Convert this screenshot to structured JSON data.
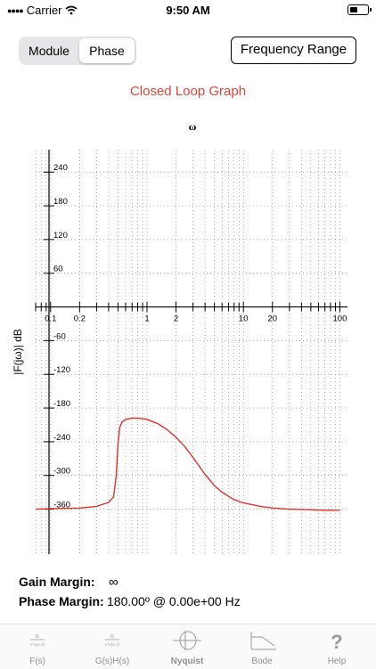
{
  "status_bar": {
    "carrier": "Carrier",
    "time": "9:50 AM"
  },
  "segmented": {
    "items": [
      "Module",
      "Phase"
    ],
    "selected": "Phase"
  },
  "freq_range_label": "Frequency Range",
  "graph_title": "Closed Loop Graph",
  "chart_data": {
    "type": "line",
    "title": "ω",
    "ylabel": "|F(jω)| dB",
    "x_scale": "log",
    "xlim": [
      0.07,
      120
    ],
    "ylim": [
      -440,
      280
    ],
    "x_tick_labels": [
      "0.1",
      "0.2",
      "1",
      "2",
      "10",
      "20",
      "100"
    ],
    "x_ticks": [
      0.1,
      0.2,
      1,
      2,
      10,
      20,
      100
    ],
    "y_ticks": [
      240,
      180,
      120,
      60,
      -60,
      -120,
      -180,
      -240,
      -300,
      -360
    ],
    "y_tick_labels": [
      "240",
      "180",
      "120",
      "60",
      "-60",
      "-120",
      "-180",
      "-240",
      "-300",
      "-360"
    ],
    "grid": true,
    "series": [
      {
        "color": "#e0302a",
        "x": [
          0.07,
          0.1,
          0.2,
          0.3,
          0.4,
          0.45,
          0.48,
          0.5,
          0.52,
          0.55,
          0.6,
          0.7,
          0.8,
          1.0,
          1.3,
          1.6,
          2.0,
          2.5,
          3.0,
          4.0,
          5.0,
          6.0,
          8.0,
          10,
          15,
          20,
          30,
          50,
          70,
          100
        ],
        "y": [
          -360,
          -359,
          -358,
          -355,
          -348,
          -338,
          -300,
          -245,
          -215,
          -205,
          -200,
          -198,
          -198,
          -200,
          -208,
          -218,
          -232,
          -250,
          -268,
          -298,
          -318,
          -330,
          -343,
          -349,
          -355,
          -358,
          -360,
          -361,
          -362,
          -362
        ]
      }
    ]
  },
  "margins": {
    "gain_label": "Gain Margin:",
    "gain_value": "∞",
    "phase_label": "Phase Margin:",
    "phase_value": "180.00º @ 0.00e+00 Hz"
  },
  "tabbar": {
    "items": [
      {
        "label": "F(s)",
        "icon": "fs-icon"
      },
      {
        "label": "G(s)H(s)",
        "icon": "gsh-icon"
      },
      {
        "label": "Nyquist",
        "icon": "nyquist-icon"
      },
      {
        "label": "Bode",
        "icon": "bode-icon"
      },
      {
        "label": "Help",
        "icon": "help-icon"
      }
    ]
  }
}
